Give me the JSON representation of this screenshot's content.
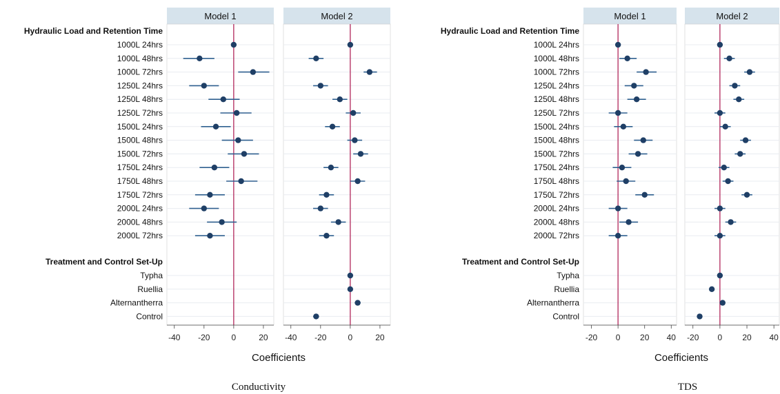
{
  "chart_data": [
    {
      "type": "scatter",
      "subtype": "coefficient-plot",
      "caption": "Conductivity",
      "xlabel": "Coefficients",
      "xlim": [
        -45,
        27
      ],
      "xticks": [
        -40,
        -20,
        0,
        20
      ],
      "reference_line": 0,
      "groups": [
        {
          "label": "Hydraulic Load and Retention Time",
          "rows": [
            "1000L 24hrs",
            "1000L 48hrs",
            "1000L 72hrs",
            "1250L 24hrs",
            "1250L 48hrs",
            "1250L 72hrs",
            "1500L 24hrs",
            "1500L 48hrs",
            "1500L 72hrs",
            "1750L 24hrs",
            "1750L 48hrs",
            "1750L 72hrs",
            "2000L 24hrs",
            "2000L 48hrs",
            "2000L 72hrs"
          ]
        },
        {
          "label": "Treatment and Control Set-Up",
          "rows": [
            "Typha",
            "Ruellia",
            "Alternantherra",
            "Control"
          ]
        }
      ],
      "panels": [
        {
          "name": "Model 1",
          "points": [
            {
              "row": "1000L 24hrs",
              "est": 0,
              "lo": 0,
              "hi": 0
            },
            {
              "row": "1000L 48hrs",
              "est": -23,
              "lo": -34,
              "hi": -13
            },
            {
              "row": "1000L 72hrs",
              "est": 13,
              "lo": 3,
              "hi": 24
            },
            {
              "row": "1250L 24hrs",
              "est": -20,
              "lo": -30,
              "hi": -10
            },
            {
              "row": "1250L 48hrs",
              "est": -7,
              "lo": -17,
              "hi": 4
            },
            {
              "row": "1250L 72hrs",
              "est": 2,
              "lo": -9,
              "hi": 12
            },
            {
              "row": "1500L 24hrs",
              "est": -12,
              "lo": -22,
              "hi": -2
            },
            {
              "row": "1500L 48hrs",
              "est": 3,
              "lo": -8,
              "hi": 13
            },
            {
              "row": "1500L 72hrs",
              "est": 7,
              "lo": -4,
              "hi": 17
            },
            {
              "row": "1750L 24hrs",
              "est": -13,
              "lo": -23,
              "hi": -3
            },
            {
              "row": "1750L 48hrs",
              "est": 5,
              "lo": -5,
              "hi": 16
            },
            {
              "row": "1750L 72hrs",
              "est": -16,
              "lo": -26,
              "hi": -6
            },
            {
              "row": "2000L 24hrs",
              "est": -20,
              "lo": -30,
              "hi": -10
            },
            {
              "row": "2000L 48hrs",
              "est": -8,
              "lo": -18,
              "hi": 2
            },
            {
              "row": "2000L 72hrs",
              "est": -16,
              "lo": -26,
              "hi": -6
            }
          ]
        },
        {
          "name": "Model 2",
          "points": [
            {
              "row": "1000L 24hrs",
              "est": 0,
              "lo": 0,
              "hi": 0
            },
            {
              "row": "1000L 48hrs",
              "est": -23,
              "lo": -28,
              "hi": -18
            },
            {
              "row": "1000L 72hrs",
              "est": 13,
              "lo": 9,
              "hi": 18
            },
            {
              "row": "1250L 24hrs",
              "est": -20,
              "lo": -25,
              "hi": -15
            },
            {
              "row": "1250L 48hrs",
              "est": -7,
              "lo": -12,
              "hi": -2
            },
            {
              "row": "1250L 72hrs",
              "est": 2,
              "lo": -3,
              "hi": 7
            },
            {
              "row": "1500L 24hrs",
              "est": -12,
              "lo": -17,
              "hi": -7
            },
            {
              "row": "1500L 48hrs",
              "est": 3,
              "lo": -2,
              "hi": 8
            },
            {
              "row": "1500L 72hrs",
              "est": 7,
              "lo": 2,
              "hi": 12
            },
            {
              "row": "1750L 24hrs",
              "est": -13,
              "lo": -18,
              "hi": -8
            },
            {
              "row": "1750L 48hrs",
              "est": 5,
              "lo": 0,
              "hi": 10
            },
            {
              "row": "1750L 72hrs",
              "est": -16,
              "lo": -21,
              "hi": -11
            },
            {
              "row": "2000L 24hrs",
              "est": -20,
              "lo": -25,
              "hi": -15
            },
            {
              "row": "2000L 48hrs",
              "est": -8,
              "lo": -13,
              "hi": -3
            },
            {
              "row": "2000L 72hrs",
              "est": -16,
              "lo": -21,
              "hi": -11
            },
            {
              "row": "Typha",
              "est": 0,
              "lo": 0,
              "hi": 0
            },
            {
              "row": "Ruellia",
              "est": 0,
              "lo": -1,
              "hi": 1
            },
            {
              "row": "Alternantherra",
              "est": 5,
              "lo": 3,
              "hi": 7
            },
            {
              "row": "Control",
              "est": -23,
              "lo": -25,
              "hi": -21
            }
          ]
        }
      ]
    },
    {
      "type": "scatter",
      "subtype": "coefficient-plot",
      "caption": "TDS",
      "xlabel": "Coefficients",
      "xlim": [
        -26,
        44
      ],
      "xticks": [
        -20,
        0,
        20,
        40
      ],
      "reference_line": 0,
      "groups": [
        {
          "label": "Hydraulic Load and Retention Time",
          "rows": [
            "1000L 24hrs",
            "1000L 48hrs",
            "1000L 72hrs",
            "1250L 24hrs",
            "1250L 48hrs",
            "1250L 72hrs",
            "1500L 24hrs",
            "1500L 48hrs",
            "1500L 72hrs",
            "1750L 24hrs",
            "1750L 48hrs",
            "1750L 72hrs",
            "2000L 24hrs",
            "2000L 48hrs",
            "2000L 72hrs"
          ]
        },
        {
          "label": "Treatment and Control Set-Up",
          "rows": [
            "Typha",
            "Ruellia",
            "Alternantherra",
            "Control"
          ]
        }
      ],
      "panels": [
        {
          "name": "Model 1",
          "points": [
            {
              "row": "1000L 24hrs",
              "est": 0,
              "lo": 0,
              "hi": 0
            },
            {
              "row": "1000L 48hrs",
              "est": 7,
              "lo": 1,
              "hi": 14
            },
            {
              "row": "1000L 72hrs",
              "est": 21,
              "lo": 14,
              "hi": 29
            },
            {
              "row": "1250L 24hrs",
              "est": 12,
              "lo": 5,
              "hi": 19
            },
            {
              "row": "1250L 48hrs",
              "est": 14,
              "lo": 7,
              "hi": 21
            },
            {
              "row": "1250L 72hrs",
              "est": 0,
              "lo": -7,
              "hi": 7
            },
            {
              "row": "1500L 24hrs",
              "est": 4,
              "lo": -3,
              "hi": 11
            },
            {
              "row": "1500L 48hrs",
              "est": 19,
              "lo": 12,
              "hi": 26
            },
            {
              "row": "1500L 72hrs",
              "est": 15,
              "lo": 8,
              "hi": 22
            },
            {
              "row": "1750L 24hrs",
              "est": 3,
              "lo": -4,
              "hi": 10
            },
            {
              "row": "1750L 48hrs",
              "est": 6,
              "lo": -1,
              "hi": 13
            },
            {
              "row": "1750L 72hrs",
              "est": 20,
              "lo": 13,
              "hi": 27
            },
            {
              "row": "2000L 24hrs",
              "est": 0,
              "lo": -7,
              "hi": 7
            },
            {
              "row": "2000L 48hrs",
              "est": 8,
              "lo": 1,
              "hi": 15
            },
            {
              "row": "2000L 72hrs",
              "est": 0,
              "lo": -7,
              "hi": 7
            }
          ]
        },
        {
          "name": "Model 2",
          "points": [
            {
              "row": "1000L 24hrs",
              "est": 0,
              "lo": 0,
              "hi": 0
            },
            {
              "row": "1000L 48hrs",
              "est": 7,
              "lo": 3,
              "hi": 11
            },
            {
              "row": "1000L 72hrs",
              "est": 22,
              "lo": 18,
              "hi": 26
            },
            {
              "row": "1250L 24hrs",
              "est": 11,
              "lo": 7,
              "hi": 15
            },
            {
              "row": "1250L 48hrs",
              "est": 14,
              "lo": 10,
              "hi": 18
            },
            {
              "row": "1250L 72hrs",
              "est": 0,
              "lo": -4,
              "hi": 4
            },
            {
              "row": "1500L 24hrs",
              "est": 4,
              "lo": 0,
              "hi": 8
            },
            {
              "row": "1500L 48hrs",
              "est": 19,
              "lo": 15,
              "hi": 23
            },
            {
              "row": "1500L 72hrs",
              "est": 15,
              "lo": 11,
              "hi": 19
            },
            {
              "row": "1750L 24hrs",
              "est": 3,
              "lo": -1,
              "hi": 7
            },
            {
              "row": "1750L 48hrs",
              "est": 6,
              "lo": 2,
              "hi": 10
            },
            {
              "row": "1750L 72hrs",
              "est": 20,
              "lo": 16,
              "hi": 24
            },
            {
              "row": "2000L 24hrs",
              "est": 0,
              "lo": -4,
              "hi": 4
            },
            {
              "row": "2000L 48hrs",
              "est": 8,
              "lo": 4,
              "hi": 12
            },
            {
              "row": "2000L 72hrs",
              "est": 0,
              "lo": -4,
              "hi": 4
            },
            {
              "row": "Typha",
              "est": 0,
              "lo": 0,
              "hi": 0
            },
            {
              "row": "Ruellia",
              "est": -6,
              "lo": -7,
              "hi": -5
            },
            {
              "row": "Alternantherra",
              "est": 2,
              "lo": 1,
              "hi": 3
            },
            {
              "row": "Control",
              "est": -15,
              "lo": -16,
              "hi": -14
            }
          ]
        }
      ]
    }
  ],
  "colors": {
    "marker": "#1f3f66",
    "ci_line": "#2e5f8f",
    "reference_line": "#b0265a",
    "strip_fill": "#d6e3ec",
    "gridline": "#e8ecf0",
    "panel_border": "#cccccc"
  }
}
